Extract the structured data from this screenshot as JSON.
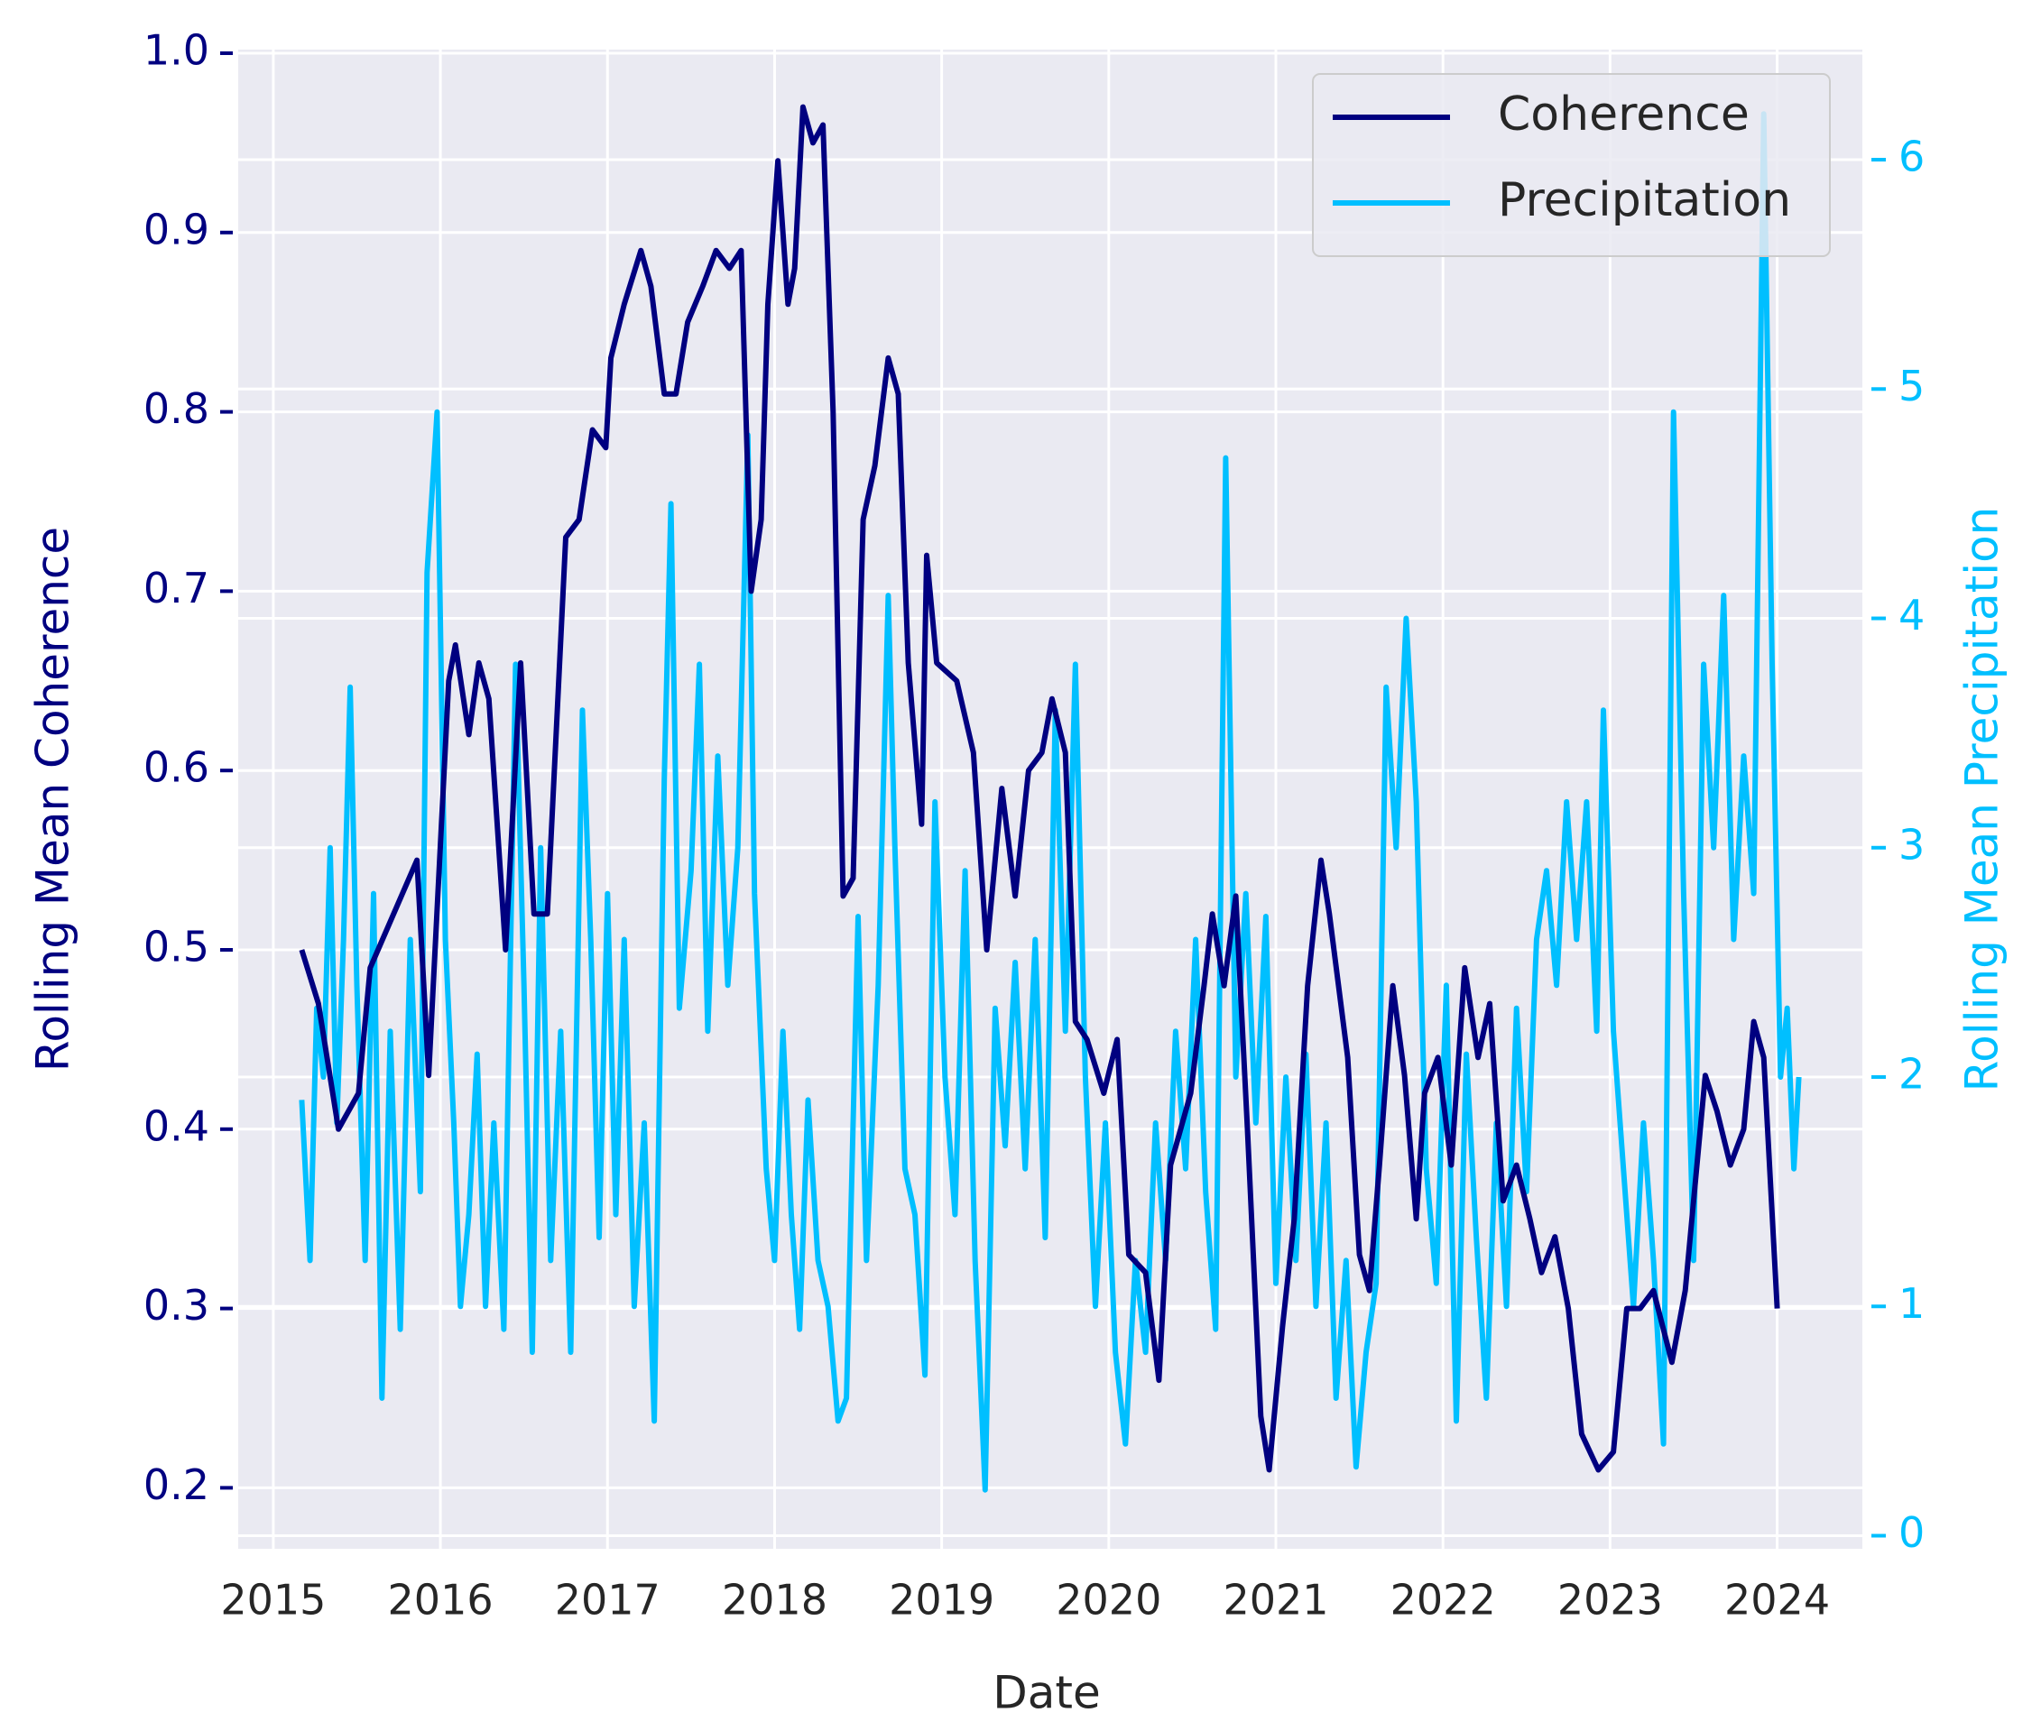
{
  "chart_data": {
    "type": "line",
    "xlabel": "Date",
    "ylabel": "Rolling Mean Coherence",
    "y2label": "Rolling Mean Precipitation",
    "xlim": [
      2014.79,
      2024.51
    ],
    "xticks": [
      2015,
      2016,
      2017,
      2018,
      2019,
      2020,
      2021,
      2022,
      2023,
      2024
    ],
    "ylim": [
      0.166,
      1.002
    ],
    "yticks": [
      0.2,
      0.3,
      0.4,
      0.5,
      0.6,
      0.7,
      0.8,
      0.9,
      {
        "value": 1,
        "label": "1.0"
      }
    ],
    "y2lim": [
      -0.057,
      6.48
    ],
    "y2ticks": [
      0,
      1,
      2,
      3,
      4,
      5,
      6
    ],
    "grid": true,
    "legend": "upper right",
    "series": [
      {
        "name": "Coherence",
        "color": "#000080",
        "axis": "y",
        "x": [
          2015.17,
          2015.27,
          2015.39,
          2015.51,
          2015.58,
          2015.86,
          2015.93,
          2016.05,
          2016.09,
          2016.17,
          2016.23,
          2016.29,
          2016.39,
          2016.48,
          2016.56,
          2016.64,
          2016.75,
          2016.83,
          2016.91,
          2016.99,
          2017.02,
          2017.1,
          2017.2,
          2017.26,
          2017.34,
          2017.41,
          2017.48,
          2017.57,
          2017.65,
          2017.73,
          2017.8,
          2017.86,
          2017.92,
          2017.96,
          2018.02,
          2018.08,
          2018.12,
          2018.17,
          2018.23,
          2018.29,
          2018.35,
          2018.41,
          2018.47,
          2018.53,
          2018.6,
          2018.68,
          2018.74,
          2018.8,
          2018.88,
          2018.91,
          2018.97,
          2019.09,
          2019.19,
          2019.27,
          2019.36,
          2019.44,
          2019.52,
          2019.6,
          2019.66,
          2019.74,
          2019.8,
          2019.87,
          2019.97,
          2020.05,
          2020.12,
          2020.22,
          2020.3,
          2020.37,
          2020.49,
          2020.57,
          2020.62,
          2020.69,
          2020.76,
          2020.83,
          2020.91,
          2020.96,
          2021.04,
          2021.11,
          2021.19,
          2021.27,
          2021.32,
          2021.43,
          2021.5,
          2021.56,
          2021.62,
          2021.7,
          2021.77,
          2021.84,
          2021.89,
          2021.97,
          2022.05,
          2022.13,
          2022.21,
          2022.28,
          2022.36,
          2022.44,
          2022.52,
          2022.59,
          2022.67,
          2022.75,
          2022.83,
          2022.93,
          2023.02,
          2023.1,
          2023.18,
          2023.26,
          2023.37,
          2023.45,
          2023.57,
          2023.64,
          2023.72,
          2023.8,
          2023.86,
          2023.92,
          2024.0
        ],
        "values": [
          0.5,
          0.47,
          0.4,
          0.42,
          0.49,
          0.55,
          0.43,
          0.65,
          0.67,
          0.62,
          0.66,
          0.64,
          0.5,
          0.66,
          0.52,
          0.52,
          0.73,
          0.74,
          0.79,
          0.78,
          0.83,
          0.86,
          0.89,
          0.87,
          0.81,
          0.81,
          0.85,
          0.87,
          0.89,
          0.88,
          0.89,
          0.7,
          0.74,
          0.86,
          0.94,
          0.86,
          0.88,
          0.97,
          0.95,
          0.96,
          0.8,
          0.53,
          0.54,
          0.74,
          0.77,
          0.83,
          0.81,
          0.66,
          0.57,
          0.72,
          0.66,
          0.65,
          0.61,
          0.5,
          0.59,
          0.53,
          0.6,
          0.61,
          0.64,
          0.61,
          0.46,
          0.45,
          0.42,
          0.45,
          0.33,
          0.32,
          0.26,
          0.38,
          0.42,
          0.48,
          0.52,
          0.48,
          0.53,
          0.4,
          0.24,
          0.21,
          0.29,
          0.35,
          0.48,
          0.55,
          0.52,
          0.44,
          0.33,
          0.31,
          0.38,
          0.48,
          0.43,
          0.35,
          0.42,
          0.44,
          0.38,
          0.49,
          0.44,
          0.47,
          0.36,
          0.38,
          0.35,
          0.32,
          0.34,
          0.3,
          0.23,
          0.21,
          0.22,
          0.3,
          0.3,
          0.31,
          0.27,
          0.31,
          0.43,
          0.41,
          0.38,
          0.4,
          0.46,
          0.44,
          0.3
        ]
      },
      {
        "name": "Precipitation",
        "color": "#00bfff",
        "axis": "y2",
        "x": [
          2015.17,
          2015.22,
          2015.26,
          2015.3,
          2015.34,
          2015.38,
          2015.42,
          2015.46,
          2015.5,
          2015.55,
          2015.6,
          2015.65,
          2015.7,
          2015.76,
          2015.82,
          2015.88,
          2015.92,
          2015.98,
          2016.03,
          2016.08,
          2016.12,
          2016.17,
          2016.22,
          2016.27,
          2016.32,
          2016.38,
          2016.45,
          2016.5,
          2016.55,
          2016.6,
          2016.66,
          2016.72,
          2016.78,
          2016.85,
          2016.9,
          2016.95,
          2017.0,
          2017.05,
          2017.1,
          2017.16,
          2017.22,
          2017.28,
          2017.34,
          2017.38,
          2017.43,
          2017.5,
          2017.55,
          2017.6,
          2017.66,
          2017.72,
          2017.78,
          2017.84,
          2017.88,
          2017.95,
          2018.0,
          2018.05,
          2018.1,
          2018.15,
          2018.2,
          2018.26,
          2018.32,
          2018.38,
          2018.43,
          2018.5,
          2018.55,
          2018.62,
          2018.68,
          2018.72,
          2018.78,
          2018.84,
          2018.9,
          2018.96,
          2019.02,
          2019.08,
          2019.14,
          2019.2,
          2019.26,
          2019.32,
          2019.38,
          2019.44,
          2019.5,
          2019.56,
          2019.62,
          2019.68,
          2019.74,
          2019.8,
          2019.86,
          2019.92,
          2019.98,
          2020.04,
          2020.1,
          2020.16,
          2020.22,
          2020.28,
          2020.34,
          2020.4,
          2020.46,
          2020.52,
          2020.58,
          2020.64,
          2020.7,
          2020.76,
          2020.82,
          2020.88,
          2020.94,
          2021.0,
          2021.06,
          2021.12,
          2021.18,
          2021.24,
          2021.3,
          2021.36,
          2021.42,
          2021.48,
          2021.54,
          2021.6,
          2021.66,
          2021.72,
          2021.78,
          2021.84,
          2021.9,
          2021.96,
          2022.02,
          2022.08,
          2022.14,
          2022.2,
          2022.26,
          2022.32,
          2022.38,
          2022.44,
          2022.5,
          2022.56,
          2022.62,
          2022.68,
          2022.74,
          2022.8,
          2022.86,
          2022.92,
          2022.96,
          2023.02,
          2023.08,
          2023.14,
          2023.2,
          2023.26,
          2023.32,
          2023.38,
          2023.44,
          2023.5,
          2023.56,
          2023.62,
          2023.68,
          2023.74,
          2023.8,
          2023.86,
          2023.92,
          2023.97,
          2024.02,
          2024.06,
          2024.1,
          2024.13
        ],
        "values": [
          1.9,
          1.2,
          2.3,
          2.0,
          3.0,
          1.8,
          2.6,
          3.7,
          2.4,
          1.2,
          2.8,
          0.6,
          2.2,
          0.9,
          2.6,
          1.5,
          4.2,
          4.9,
          2.6,
          1.8,
          1.0,
          1.4,
          2.1,
          1.0,
          1.8,
          0.9,
          3.8,
          2.4,
          0.8,
          3.0,
          1.2,
          2.2,
          0.8,
          3.6,
          2.6,
          1.3,
          2.8,
          1.4,
          2.6,
          1.0,
          1.8,
          0.5,
          3.3,
          4.5,
          2.3,
          2.9,
          3.8,
          2.2,
          3.4,
          2.4,
          3.0,
          4.8,
          2.8,
          1.6,
          1.2,
          2.2,
          1.4,
          0.9,
          1.9,
          1.2,
          1.0,
          0.5,
          0.6,
          2.7,
          1.2,
          2.4,
          4.1,
          3.0,
          1.6,
          1.4,
          0.7,
          3.2,
          2.0,
          1.4,
          2.9,
          1.2,
          0.2,
          2.3,
          1.7,
          2.5,
          1.6,
          2.6,
          1.3,
          3.6,
          2.2,
          3.8,
          2.0,
          1.0,
          1.8,
          0.8,
          0.4,
          1.2,
          0.8,
          1.8,
          1.2,
          2.2,
          1.6,
          2.6,
          1.5,
          0.9,
          4.7,
          2.0,
          2.8,
          1.8,
          2.7,
          1.1,
          2.0,
          1.2,
          2.1,
          1.0,
          1.8,
          0.6,
          1.2,
          0.3,
          0.8,
          1.1,
          3.7,
          3.0,
          4.0,
          3.2,
          1.6,
          1.1,
          2.4,
          0.5,
          2.1,
          1.3,
          0.6,
          1.8,
          1.0,
          2.3,
          1.5,
          2.6,
          2.9,
          2.4,
          3.2,
          2.6,
          3.2,
          2.2,
          3.6,
          2.2,
          1.6,
          1.0,
          1.8,
          1.2,
          0.4,
          4.9,
          2.8,
          1.2,
          3.8,
          3.0,
          4.1,
          2.6,
          3.4,
          2.8,
          6.2,
          3.8,
          2.0,
          2.3,
          1.6,
          2.0
        ]
      }
    ]
  }
}
